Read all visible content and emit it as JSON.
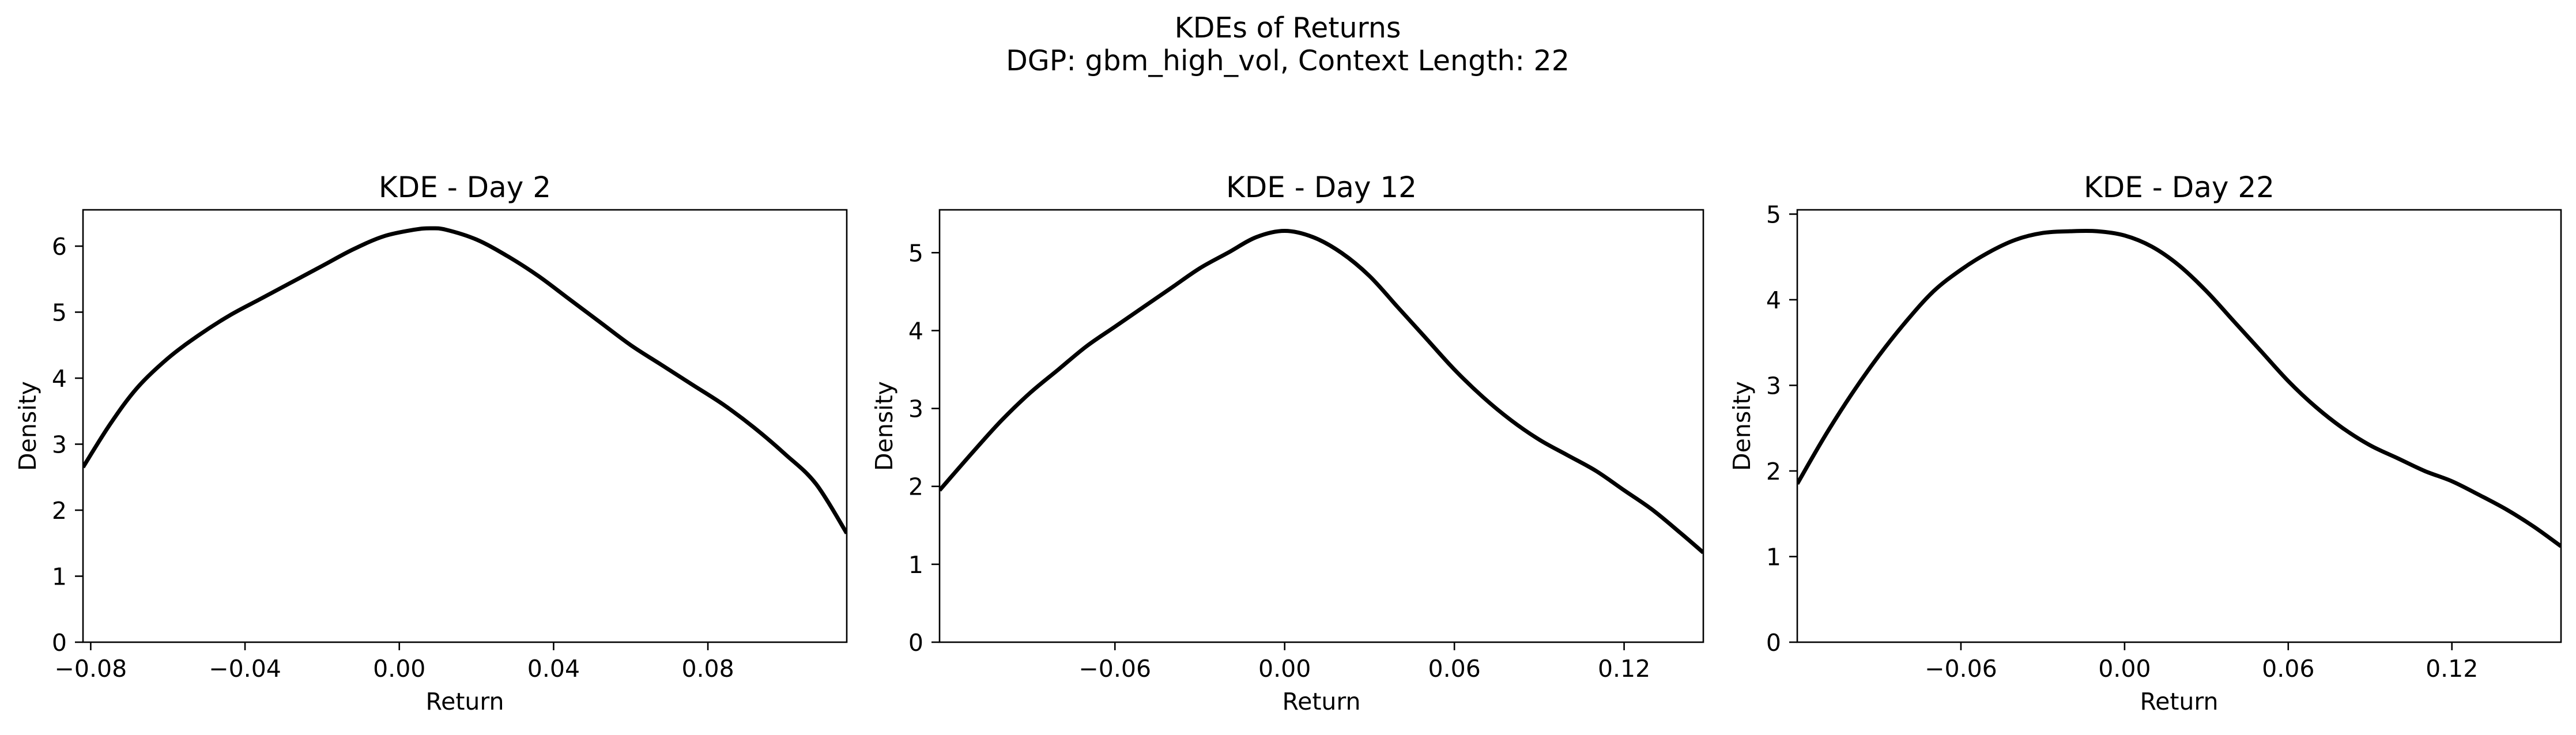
{
  "figure": {
    "title": "KDEs of Returns",
    "subtitle": "DGP: gbm_high_vol, Context Length: 22"
  },
  "chart_data": [
    {
      "type": "line",
      "title": "KDE - Day 2",
      "xlabel": "Return",
      "ylabel": "Density",
      "xlim": [
        -0.082,
        0.116
      ],
      "ylim": [
        0,
        6.55
      ],
      "xticks": [
        -0.08,
        -0.04,
        0.0,
        0.04,
        0.08
      ],
      "xtick_labels": [
        "−0.08",
        "−0.04",
        "0.00",
        "0.04",
        "0.08"
      ],
      "yticks": [
        0,
        1,
        2,
        3,
        4,
        5,
        6
      ],
      "ytick_labels": [
        "0",
        "1",
        "2",
        "3",
        "4",
        "5",
        "6"
      ],
      "grid": false,
      "line_color": "#000000",
      "series": [
        {
          "x": [
            -0.082,
            -0.075,
            -0.068,
            -0.06,
            -0.052,
            -0.044,
            -0.036,
            -0.028,
            -0.02,
            -0.012,
            -0.004,
            0.004,
            0.008,
            0.012,
            0.02,
            0.028,
            0.036,
            0.044,
            0.052,
            0.06,
            0.068,
            0.076,
            0.084,
            0.092,
            0.1,
            0.108,
            0.116
          ],
          "y": [
            2.65,
            3.3,
            3.85,
            4.3,
            4.65,
            4.95,
            5.2,
            5.45,
            5.7,
            5.95,
            6.15,
            6.25,
            6.27,
            6.25,
            6.1,
            5.85,
            5.55,
            5.2,
            4.85,
            4.5,
            4.2,
            3.9,
            3.6,
            3.25,
            2.85,
            2.4,
            1.65
          ]
        }
      ]
    },
    {
      "type": "line",
      "title": "KDE - Day 12",
      "xlabel": "Return",
      "ylabel": "Density",
      "xlim": [
        -0.122,
        0.148
      ],
      "ylim": [
        0,
        5.55
      ],
      "xticks": [
        -0.06,
        0.0,
        0.06,
        0.12
      ],
      "xtick_labels": [
        "−0.06",
        "0.00",
        "0.06",
        "0.12"
      ],
      "yticks": [
        0,
        1,
        2,
        3,
        4,
        5
      ],
      "ytick_labels": [
        "0",
        "1",
        "2",
        "3",
        "4",
        "5"
      ],
      "grid": false,
      "line_color": "#000000",
      "series": [
        {
          "x": [
            -0.122,
            -0.11,
            -0.1,
            -0.09,
            -0.08,
            -0.07,
            -0.06,
            -0.05,
            -0.04,
            -0.03,
            -0.02,
            -0.01,
            0.0,
            0.01,
            0.02,
            0.03,
            0.04,
            0.05,
            0.06,
            0.07,
            0.08,
            0.09,
            0.1,
            0.11,
            0.12,
            0.13,
            0.14,
            0.148
          ],
          "y": [
            1.95,
            2.45,
            2.85,
            3.2,
            3.5,
            3.8,
            4.05,
            4.3,
            4.55,
            4.8,
            5.0,
            5.2,
            5.28,
            5.2,
            5.0,
            4.7,
            4.3,
            3.9,
            3.5,
            3.15,
            2.85,
            2.6,
            2.4,
            2.2,
            1.95,
            1.7,
            1.4,
            1.15
          ]
        }
      ]
    },
    {
      "type": "line",
      "title": "KDE - Day 22",
      "xlabel": "Return",
      "ylabel": "Density",
      "xlim": [
        -0.12,
        0.16
      ],
      "ylim": [
        0,
        5.05
      ],
      "xticks": [
        -0.06,
        0.0,
        0.06,
        0.12
      ],
      "xtick_labels": [
        "−0.06",
        "0.00",
        "0.06",
        "0.12"
      ],
      "yticks": [
        0,
        1,
        2,
        3,
        4,
        5
      ],
      "ytick_labels": [
        "0",
        "1",
        "2",
        "3",
        "4",
        "5"
      ],
      "grid": false,
      "line_color": "#000000",
      "series": [
        {
          "x": [
            -0.12,
            -0.11,
            -0.1,
            -0.09,
            -0.08,
            -0.07,
            -0.06,
            -0.05,
            -0.04,
            -0.03,
            -0.02,
            -0.01,
            0.0,
            0.01,
            0.02,
            0.03,
            0.04,
            0.05,
            0.06,
            0.07,
            0.08,
            0.09,
            0.1,
            0.11,
            0.12,
            0.13,
            0.14,
            0.15,
            0.16
          ],
          "y": [
            1.85,
            2.4,
            2.9,
            3.35,
            3.75,
            4.1,
            4.35,
            4.55,
            4.7,
            4.78,
            4.8,
            4.8,
            4.75,
            4.62,
            4.4,
            4.1,
            3.75,
            3.4,
            3.05,
            2.75,
            2.5,
            2.3,
            2.15,
            2.0,
            1.88,
            1.72,
            1.55,
            1.35,
            1.12
          ]
        }
      ]
    }
  ]
}
